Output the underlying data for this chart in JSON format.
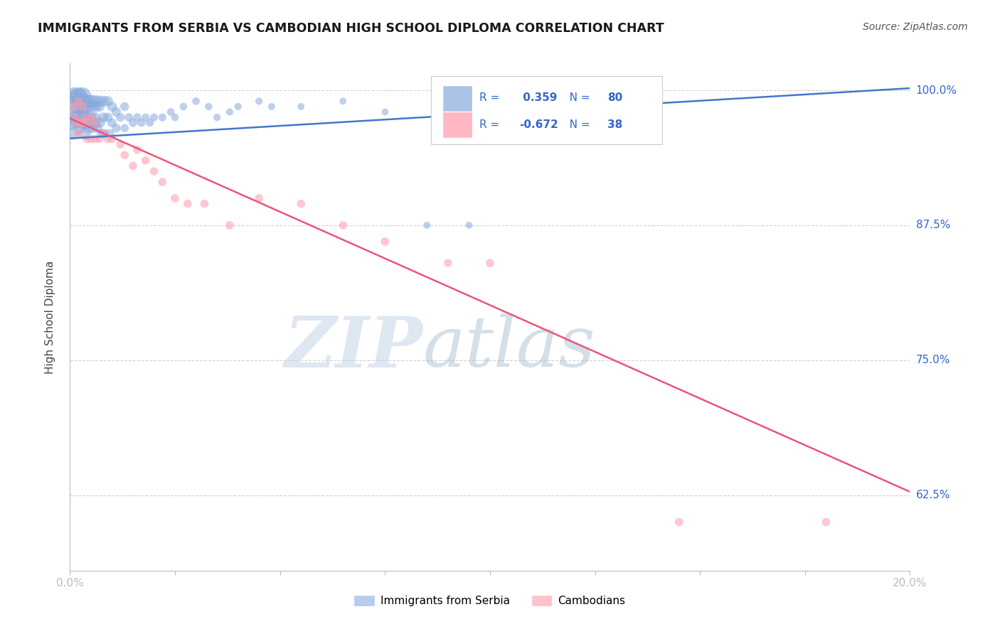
{
  "title": "IMMIGRANTS FROM SERBIA VS CAMBODIAN HIGH SCHOOL DIPLOMA CORRELATION CHART",
  "source": "Source: ZipAtlas.com",
  "legend_blue_label": "Immigrants from Serbia",
  "legend_pink_label": "Cambodians",
  "r_blue": 0.359,
  "n_blue": 80,
  "r_pink": -0.672,
  "n_pink": 38,
  "blue_color": "#88AADD",
  "pink_color": "#FF99AA",
  "blue_line_color": "#4477CC",
  "pink_line_color": "#EE5577",
  "x_min": 0.0,
  "x_max": 0.2,
  "y_min": 0.555,
  "y_max": 1.025,
  "blue_scatter_x": [
    0.0005,
    0.0008,
    0.001,
    0.001,
    0.0012,
    0.0013,
    0.0015,
    0.0015,
    0.0016,
    0.0017,
    0.002,
    0.002,
    0.002,
    0.0022,
    0.0023,
    0.0025,
    0.0025,
    0.0027,
    0.003,
    0.003,
    0.003,
    0.0032,
    0.0033,
    0.0035,
    0.0035,
    0.004,
    0.004,
    0.004,
    0.0042,
    0.0045,
    0.005,
    0.005,
    0.005,
    0.0052,
    0.0055,
    0.006,
    0.006,
    0.006,
    0.0062,
    0.0065,
    0.007,
    0.007,
    0.0072,
    0.0075,
    0.008,
    0.008,
    0.0082,
    0.009,
    0.009,
    0.0095,
    0.01,
    0.01,
    0.011,
    0.011,
    0.012,
    0.013,
    0.013,
    0.014,
    0.015,
    0.016,
    0.017,
    0.018,
    0.019,
    0.02,
    0.022,
    0.024,
    0.025,
    0.027,
    0.03,
    0.033,
    0.035,
    0.038,
    0.04,
    0.045,
    0.048,
    0.055,
    0.065,
    0.075,
    0.085,
    0.095
  ],
  "blue_scatter_y": [
    0.97,
    0.96,
    0.995,
    0.98,
    0.975,
    0.97,
    0.995,
    0.99,
    0.985,
    0.98,
    0.995,
    0.99,
    0.975,
    0.97,
    0.965,
    0.995,
    0.985,
    0.975,
    0.995,
    0.99,
    0.985,
    0.98,
    0.975,
    0.97,
    0.96,
    0.99,
    0.985,
    0.975,
    0.97,
    0.965,
    0.99,
    0.985,
    0.975,
    0.97,
    0.965,
    0.99,
    0.985,
    0.975,
    0.97,
    0.965,
    0.99,
    0.985,
    0.97,
    0.96,
    0.99,
    0.975,
    0.96,
    0.99,
    0.975,
    0.96,
    0.985,
    0.97,
    0.98,
    0.965,
    0.975,
    0.985,
    0.965,
    0.975,
    0.97,
    0.975,
    0.97,
    0.975,
    0.97,
    0.975,
    0.975,
    0.98,
    0.975,
    0.985,
    0.99,
    0.985,
    0.975,
    0.98,
    0.985,
    0.99,
    0.985,
    0.985,
    0.99,
    0.98,
    0.875,
    0.875
  ],
  "blue_scatter_size": [
    200,
    150,
    300,
    200,
    150,
    120,
    200,
    150,
    200,
    150,
    300,
    200,
    200,
    150,
    120,
    200,
    150,
    120,
    300,
    250,
    200,
    180,
    150,
    200,
    150,
    200,
    180,
    150,
    130,
    120,
    180,
    150,
    130,
    120,
    100,
    150,
    130,
    110,
    100,
    90,
    130,
    110,
    100,
    90,
    120,
    100,
    90,
    110,
    90,
    80,
    100,
    85,
    90,
    80,
    80,
    80,
    70,
    75,
    75,
    70,
    70,
    65,
    65,
    65,
    65,
    60,
    60,
    60,
    60,
    55,
    55,
    55,
    55,
    55,
    50,
    50,
    50,
    50,
    50,
    50
  ],
  "pink_scatter_x": [
    0.001,
    0.0012,
    0.0015,
    0.002,
    0.002,
    0.0025,
    0.003,
    0.003,
    0.0035,
    0.004,
    0.004,
    0.005,
    0.005,
    0.006,
    0.006,
    0.007,
    0.008,
    0.009,
    0.01,
    0.012,
    0.013,
    0.015,
    0.016,
    0.018,
    0.02,
    0.022,
    0.025,
    0.028,
    0.032,
    0.038,
    0.045,
    0.055,
    0.065,
    0.075,
    0.09,
    0.1,
    0.145,
    0.18
  ],
  "pink_scatter_y": [
    0.985,
    0.975,
    0.97,
    0.99,
    0.96,
    0.97,
    0.985,
    0.97,
    0.975,
    0.97,
    0.955,
    0.975,
    0.955,
    0.97,
    0.955,
    0.955,
    0.96,
    0.955,
    0.955,
    0.95,
    0.94,
    0.93,
    0.945,
    0.935,
    0.925,
    0.915,
    0.9,
    0.895,
    0.895,
    0.875,
    0.9,
    0.895,
    0.875,
    0.86,
    0.84,
    0.84,
    0.6,
    0.6
  ],
  "pink_scatter_size": [
    80,
    70,
    70,
    80,
    70,
    70,
    80,
    70,
    70,
    80,
    70,
    70,
    70,
    70,
    70,
    70,
    70,
    70,
    70,
    70,
    70,
    70,
    70,
    70,
    70,
    70,
    70,
    70,
    70,
    70,
    70,
    70,
    70,
    70,
    70,
    70,
    70,
    70
  ],
  "blue_line_x": [
    0.0,
    0.2
  ],
  "blue_line_y": [
    0.9555,
    1.002
  ],
  "pink_line_x": [
    0.0,
    0.2
  ],
  "pink_line_y": [
    0.974,
    0.628
  ],
  "ytick_vals": [
    1.0,
    0.875,
    0.75,
    0.625
  ],
  "ytick_labels": [
    "100.0%",
    "87.5%",
    "75.0%",
    "62.5%"
  ],
  "xtick_vals": [
    0.0,
    0.025,
    0.05,
    0.075,
    0.1,
    0.125,
    0.15,
    0.175,
    0.2
  ],
  "xtick_labels": [
    "0.0%",
    "",
    "",
    "",
    "",
    "",
    "",
    "",
    "20.0%"
  ]
}
